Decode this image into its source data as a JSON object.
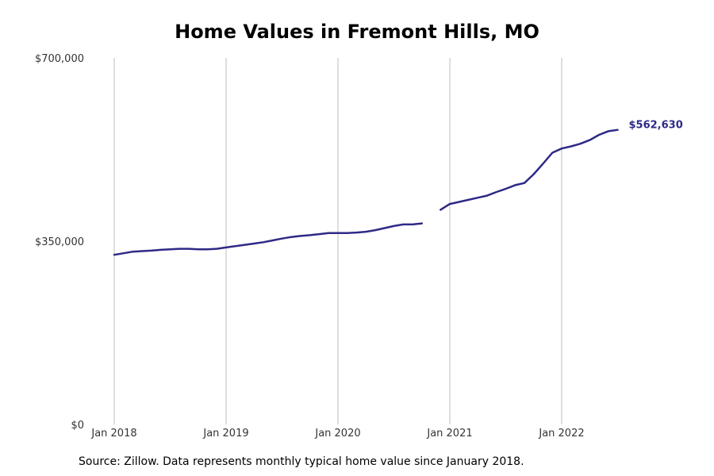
{
  "chart_data": {
    "type": "line",
    "title": "Home Values in Fremont Hills, MO",
    "xlabel": "",
    "ylabel": "",
    "ylim": [
      0,
      700000
    ],
    "yticks": [
      {
        "value": 0,
        "label": "$0"
      },
      {
        "value": 350000,
        "label": "$350,000"
      },
      {
        "value": 700000,
        "label": "$700,000"
      }
    ],
    "xticks": [
      {
        "value": "2018-01",
        "label": "Jan 2018"
      },
      {
        "value": "2019-01",
        "label": "Jan 2019"
      },
      {
        "value": "2020-01",
        "label": "Jan 2020"
      },
      {
        "value": "2021-01",
        "label": "Jan 2021"
      },
      {
        "value": "2022-01",
        "label": "Jan 2022"
      }
    ],
    "grid": "vertical",
    "line_color": "#2e2a86",
    "end_label": "$562,630",
    "series": [
      {
        "segments": [
          [
            {
              "x": "2018-01",
              "y": 324000
            },
            {
              "x": "2018-02",
              "y": 327000
            },
            {
              "x": "2018-03",
              "y": 330000
            },
            {
              "x": "2018-04",
              "y": 331000
            },
            {
              "x": "2018-05",
              "y": 332000
            },
            {
              "x": "2018-06",
              "y": 333500
            },
            {
              "x": "2018-07",
              "y": 334500
            },
            {
              "x": "2018-08",
              "y": 335500
            },
            {
              "x": "2018-09",
              "y": 335500
            },
            {
              "x": "2018-10",
              "y": 334500
            },
            {
              "x": "2018-11",
              "y": 334500
            },
            {
              "x": "2018-12",
              "y": 335500
            },
            {
              "x": "2019-01",
              "y": 338000
            },
            {
              "x": "2019-02",
              "y": 340500
            },
            {
              "x": "2019-03",
              "y": 343000
            },
            {
              "x": "2019-04",
              "y": 345500
            },
            {
              "x": "2019-05",
              "y": 348000
            },
            {
              "x": "2019-06",
              "y": 351500
            },
            {
              "x": "2019-07",
              "y": 355000
            },
            {
              "x": "2019-08",
              "y": 358000
            },
            {
              "x": "2019-09",
              "y": 360000
            },
            {
              "x": "2019-10",
              "y": 361500
            },
            {
              "x": "2019-11",
              "y": 363500
            },
            {
              "x": "2019-12",
              "y": 365500
            },
            {
              "x": "2020-01",
              "y": 365500
            },
            {
              "x": "2020-02",
              "y": 365500
            },
            {
              "x": "2020-03",
              "y": 366500
            },
            {
              "x": "2020-04",
              "y": 368000
            },
            {
              "x": "2020-05",
              "y": 371000
            },
            {
              "x": "2020-06",
              "y": 375000
            },
            {
              "x": "2020-07",
              "y": 379000
            },
            {
              "x": "2020-08",
              "y": 382000
            },
            {
              "x": "2020-09",
              "y": 382000
            },
            {
              "x": "2020-10",
              "y": 384000
            }
          ],
          [
            {
              "x": "2020-12",
              "y": 410000
            },
            {
              "x": "2021-01",
              "y": 421000
            },
            {
              "x": "2021-02",
              "y": 425000
            },
            {
              "x": "2021-03",
              "y": 429000
            },
            {
              "x": "2021-04",
              "y": 433000
            },
            {
              "x": "2021-05",
              "y": 437000
            },
            {
              "x": "2021-06",
              "y": 444000
            },
            {
              "x": "2021-07",
              "y": 450000
            },
            {
              "x": "2021-08",
              "y": 457000
            },
            {
              "x": "2021-09",
              "y": 461000
            },
            {
              "x": "2021-10",
              "y": 478000
            },
            {
              "x": "2021-11",
              "y": 498000
            },
            {
              "x": "2021-12",
              "y": 519000
            },
            {
              "x": "2022-01",
              "y": 527000
            },
            {
              "x": "2022-02",
              "y": 531000
            },
            {
              "x": "2022-03",
              "y": 536000
            },
            {
              "x": "2022-04",
              "y": 543000
            },
            {
              "x": "2022-05",
              "y": 553000
            },
            {
              "x": "2022-06",
              "y": 560000
            },
            {
              "x": "2022-07",
              "y": 562630
            }
          ]
        ]
      }
    ]
  },
  "source_note": "Source: Zillow. Data represents monthly typical home value since January 2018."
}
